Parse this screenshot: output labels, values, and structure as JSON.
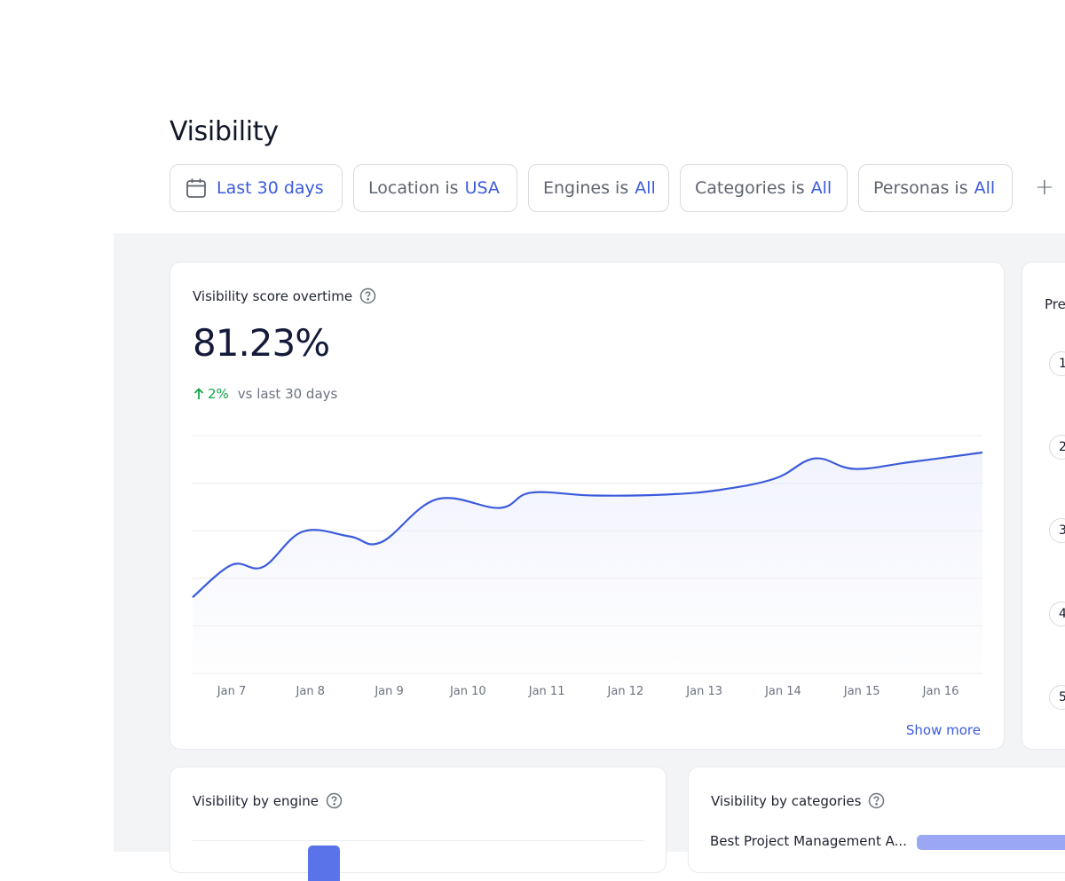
{
  "header": {
    "title": "Visibility"
  },
  "filters": {
    "date": {
      "value": "Last 30 days"
    },
    "location": {
      "label": "Location is",
      "value": "USA"
    },
    "engines": {
      "label": "Engines is",
      "value": "All"
    },
    "categories": {
      "label": "Categories is",
      "value": "All"
    },
    "personas": {
      "label": "Personas is",
      "value": "All"
    },
    "add_label": "+"
  },
  "score_card": {
    "title": "Visibility score overtime",
    "score": "81.23%",
    "delta": "2%",
    "delta_caption": "vs last 30 days",
    "show_more": "Show more",
    "line_color": "#3b5bdb"
  },
  "chart_data": {
    "type": "line",
    "x": [
      "Jan 7",
      "Jan 8",
      "Jan 9",
      "Jan 10",
      "Jan 11",
      "Jan 12",
      "Jan 13",
      "Jan 14",
      "Jan 15",
      "Jan 16"
    ],
    "grid": true,
    "series": [
      {
        "points": [
          [
            6.5,
            66
          ],
          [
            7.0,
            69.4
          ],
          [
            7.4,
            69.2
          ],
          [
            7.9,
            72.9
          ],
          [
            8.5,
            72.4
          ],
          [
            8.9,
            71.8
          ],
          [
            9.6,
            76.3
          ],
          [
            10.4,
            75.4
          ],
          [
            10.8,
            77.0
          ],
          [
            11.6,
            76.7
          ],
          [
            12.5,
            76.8
          ],
          [
            13.2,
            77.3
          ],
          [
            13.9,
            78.5
          ],
          [
            14.4,
            80.6
          ],
          [
            14.9,
            79.5
          ],
          [
            15.6,
            80.2
          ],
          [
            16.4,
            81.23
          ]
        ]
      }
    ]
  },
  "side_card": {
    "title_fragment": "Pre",
    "ranks": [
      "1",
      "2",
      "3",
      "4",
      "5"
    ]
  },
  "engine_card": {
    "title": "Visibility by engine"
  },
  "categories_card": {
    "title": "Visibility by categories",
    "rows": [
      {
        "label": "Best Project Management A..."
      }
    ]
  }
}
